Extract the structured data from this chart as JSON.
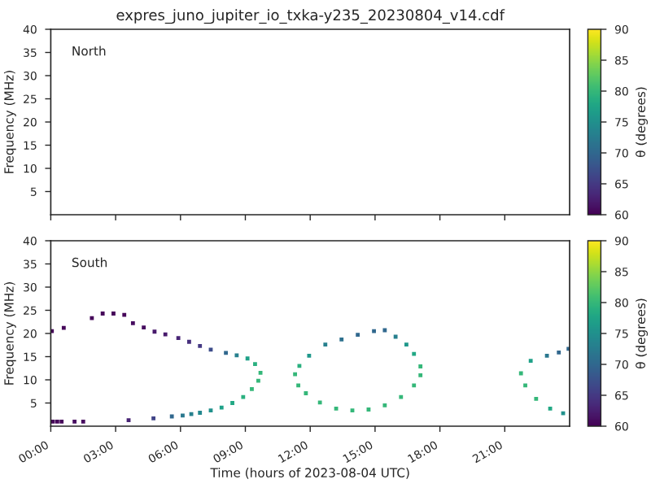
{
  "chart_data": [
    {
      "type": "scatter",
      "title": "expres_juno_jupiter_io_txka-y235_20230804_v14.cdf",
      "ylabel": "Frequency (MHz)",
      "clabel": "θ (degrees)",
      "annotations": [
        "North"
      ],
      "xlim": [
        0,
        24
      ],
      "xticks": [
        {
          "value": 0,
          "label": null
        },
        {
          "value": 3,
          "label": null
        },
        {
          "value": 6,
          "label": null
        },
        {
          "value": 9,
          "label": null
        },
        {
          "value": 12,
          "label": null
        },
        {
          "value": 15,
          "label": null
        },
        {
          "value": 18,
          "label": null
        },
        {
          "value": 21,
          "label": null
        }
      ],
      "ylim": [
        0,
        40
      ],
      "yticks": [
        5,
        10,
        15,
        20,
        25,
        30,
        35,
        40
      ],
      "clim": [
        60,
        90
      ],
      "cticks": [
        60,
        65,
        70,
        75,
        80,
        85,
        90
      ],
      "marker": "square",
      "tick_labels": "y"
    },
    {
      "type": "scatter",
      "xlabel": "Time (hours of 2023-08-04 UTC)",
      "ylabel": "Frequency (MHz)",
      "clabel": "θ (degrees)",
      "annotations": [
        "South"
      ],
      "x": [
        0.1,
        0.3,
        0.5,
        1.1,
        1.5,
        3.6,
        4.75,
        5.6,
        6.1,
        6.5,
        6.9,
        7.4,
        7.9,
        8.4,
        8.9,
        9.3,
        9.6,
        9.7,
        0.05,
        0.6,
        1.9,
        2.4,
        2.9,
        3.4,
        3.8,
        4.3,
        4.8,
        5.3,
        5.9,
        6.4,
        6.9,
        7.4,
        8.1,
        8.6,
        9.1,
        9.45,
        11.3,
        11.5,
        11.95,
        12.7,
        13.45,
        14.2,
        14.95,
        15.45,
        15.95,
        16.45,
        16.8,
        17.1,
        17.1,
        16.8,
        16.2,
        15.45,
        14.7,
        13.95,
        13.2,
        12.45,
        11.8,
        11.45,
        21.75,
        22.2,
        22.95,
        23.5,
        23.95,
        21.95,
        22.45,
        23.1,
        23.7
      ],
      "values": [
        1.0,
        1.0,
        1.0,
        1.0,
        1.0,
        1.3,
        1.7,
        2.1,
        2.3,
        2.6,
        2.9,
        3.4,
        4.0,
        5.0,
        6.3,
        8.0,
        9.8,
        11.5,
        20.5,
        21.2,
        23.3,
        24.3,
        24.3,
        24.0,
        22.2,
        21.3,
        20.4,
        19.8,
        19.0,
        18.2,
        17.3,
        16.5,
        15.8,
        15.3,
        14.6,
        13.4,
        11.2,
        13.0,
        15.2,
        17.6,
        18.7,
        19.7,
        20.5,
        20.7,
        19.3,
        17.6,
        15.6,
        12.9,
        11.0,
        8.8,
        6.3,
        4.5,
        3.6,
        3.4,
        3.8,
        5.1,
        7.1,
        8.8,
        11.4,
        14.1,
        15.2,
        15.9,
        16.7,
        8.8,
        5.9,
        3.8,
        2.8
      ],
      "cvalues": [
        60.5,
        60.5,
        60.5,
        61,
        61,
        63,
        66,
        70,
        72,
        73,
        74,
        75,
        77,
        78,
        79,
        80,
        80,
        80,
        60.5,
        60.5,
        60.5,
        60.5,
        60.5,
        60.5,
        61,
        61,
        62,
        62,
        63,
        64,
        65,
        67,
        70,
        73,
        77,
        79,
        80,
        79,
        76,
        73,
        71,
        70,
        70,
        70,
        73,
        76,
        78,
        80,
        80,
        80,
        80,
        80,
        80,
        80,
        80,
        80,
        80,
        80,
        80,
        77,
        72,
        70,
        70,
        80,
        80,
        78,
        75
      ],
      "xlim": [
        0,
        24
      ],
      "xticks": [
        {
          "value": 0,
          "label": "00:00"
        },
        {
          "value": 3,
          "label": "03:00"
        },
        {
          "value": 6,
          "label": "06:00"
        },
        {
          "value": 9,
          "label": "09:00"
        },
        {
          "value": 12,
          "label": "12:00"
        },
        {
          "value": 15,
          "label": "15:00"
        },
        {
          "value": 18,
          "label": "18:00"
        },
        {
          "value": 21,
          "label": "21:00"
        }
      ],
      "ylim": [
        0,
        40
      ],
      "yticks": [
        5,
        10,
        15,
        20,
        25,
        30,
        35,
        40
      ],
      "clim": [
        60,
        90
      ],
      "cticks": [
        60,
        65,
        70,
        75,
        80,
        85,
        90
      ],
      "marker": "square"
    }
  ]
}
